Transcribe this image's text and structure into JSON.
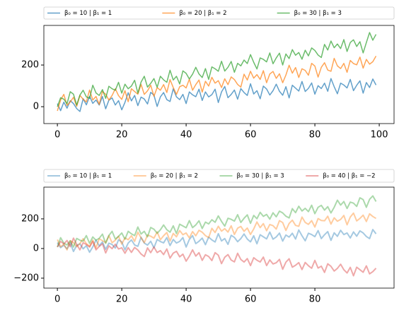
{
  "chart_data": [
    {
      "type": "line",
      "alpha": 0.7,
      "line_width": 1.5,
      "x": [
        0,
        1,
        2,
        3,
        4,
        5,
        6,
        7,
        8,
        9,
        10,
        11,
        12,
        13,
        14,
        15,
        16,
        17,
        18,
        19,
        20,
        21,
        22,
        23,
        24,
        25,
        26,
        27,
        28,
        29,
        30,
        31,
        32,
        33,
        34,
        35,
        36,
        37,
        38,
        39,
        40,
        41,
        42,
        43,
        44,
        45,
        46,
        47,
        48,
        49,
        50,
        51,
        52,
        53,
        54,
        55,
        56,
        57,
        58,
        59,
        60,
        61,
        62,
        63,
        64,
        65,
        66,
        67,
        68,
        69,
        70,
        71,
        72,
        73,
        74,
        75,
        76,
        77,
        78,
        79,
        80,
        81,
        82,
        83,
        84,
        85,
        86,
        87,
        88,
        89,
        90,
        91,
        92,
        93,
        94,
        95,
        96,
        97,
        98,
        99
      ],
      "xlim": [
        -4.2,
        104.6
      ],
      "xticks": [
        0,
        20,
        40,
        60,
        80,
        100
      ],
      "ylim": [
        -81,
        390
      ],
      "yticks": [
        0,
        200
      ],
      "series": [
        {
          "name": "β₀ = 10 | β₁ = 1",
          "color": "#1f77b4",
          "values": [
            15,
            -19,
            22,
            -7,
            29,
            15,
            -9,
            -23,
            38,
            9,
            50,
            16,
            32,
            8,
            49,
            -10,
            31,
            42,
            8,
            29,
            -15,
            21,
            67,
            28,
            54,
            5,
            46,
            37,
            13,
            69,
            55,
            1,
            47,
            68,
            34,
            25,
            86,
            47,
            34,
            59,
            15,
            71,
            57,
            48,
            84,
            30,
            71,
            47,
            58,
            84,
            20,
            71,
            97,
            43,
            59,
            80,
            36,
            87,
            68,
            54,
            110,
            61,
            77,
            38,
            99,
            85,
            56,
            77,
            108,
            74,
            55,
            96,
            42,
            103,
            89,
            75,
            121,
            73,
            88,
            114,
            60,
            101,
            87,
            113,
            74,
            135,
            96,
            62,
            113,
            104,
            90,
            131,
            77,
            103,
            124,
            65,
            116,
            92,
            133,
            104
          ]
        },
        {
          "name": "β₀ = 20 | β₁ = 2",
          "color": "#ff7f0e",
          "values": [
            -20,
            32,
            59,
            6,
            23,
            45,
            2,
            54,
            36,
            23,
            80,
            32,
            49,
            11,
            73,
            60,
            32,
            54,
            86,
            53,
            35,
            77,
            24,
            86,
            73,
            60,
            107,
            59,
            76,
            103,
            50,
            92,
            79,
            106,
            68,
            130,
            92,
            59,
            96,
            103,
            90,
            132,
            79,
            106,
            128,
            70,
            122,
            99,
            141,
            113,
            125,
            92,
            134,
            106,
            143,
            130,
            107,
            94,
            156,
            128,
            170,
            137,
            154,
            131,
            173,
            115,
            157,
            169,
            136,
            158,
            115,
            152,
            199,
            161,
            188,
            140,
            182,
            174,
            151,
            208,
            195,
            142,
            189,
            211,
            176,
            170,
            232,
            196,
            183,
            208,
            165,
            222,
            207,
            201,
            238,
            185,
            227,
            204,
            216,
            243
          ]
        },
        {
          "name": "β₀ = 30 | β₁ = 3",
          "color": "#2ca02c",
          "values": [
            0,
            43,
            36,
            14,
            72,
            60,
            8,
            56,
            79,
            47,
            40,
            103,
            66,
            54,
            82,
            40,
            98,
            86,
            79,
            117,
            65,
            108,
            86,
            99,
            127,
            65,
            118,
            146,
            94,
            112,
            135,
            93,
            146,
            129,
            117,
            175,
            128,
            146,
            109,
            172,
            160,
            133,
            156,
            189,
            157,
            140,
            183,
            131,
            191,
            182,
            170,
            218,
            171,
            189,
            217,
            165,
            208,
            196,
            224,
            207,
            250,
            213,
            181,
            234,
            227,
            215,
            258,
            206,
            234,
            257,
            200,
            253,
            231,
            274,
            247,
            260,
            228,
            271,
            244,
            282,
            270,
            248,
            236,
            299,
            272,
            315,
            283,
            301,
            279,
            322,
            265,
            308,
            321,
            289,
            312,
            258,
            308,
            356,
            319,
            347
          ]
        }
      ]
    },
    {
      "type": "line",
      "alpha": 0.4,
      "line_width": 2,
      "x": [
        0,
        1,
        2,
        3,
        4,
        5,
        6,
        7,
        8,
        9,
        10,
        11,
        12,
        13,
        14,
        15,
        16,
        17,
        18,
        19,
        20,
        21,
        22,
        23,
        24,
        25,
        26,
        27,
        28,
        29,
        30,
        31,
        32,
        33,
        34,
        35,
        36,
        37,
        38,
        39,
        40,
        41,
        42,
        43,
        44,
        45,
        46,
        47,
        48,
        49,
        50,
        51,
        52,
        53,
        54,
        55,
        56,
        57,
        58,
        59,
        60,
        61,
        62,
        63,
        64,
        65,
        66,
        67,
        68,
        69,
        70,
        71,
        72,
        73,
        74,
        75,
        76,
        77,
        78,
        79,
        80,
        81,
        82,
        83,
        84,
        85,
        86,
        87,
        88,
        89,
        90,
        91,
        92,
        93,
        94,
        95,
        96,
        97,
        98,
        99
      ],
      "xlim": [
        -4.2,
        104.6
      ],
      "xticks": [
        0,
        20,
        40,
        60,
        80
      ],
      "ylim": [
        -267,
        414
      ],
      "yticks": [
        {
          "value": -200,
          "label": "−200"
        },
        0,
        200
      ],
      "series": [
        {
          "name": "β₀ = 10 | β₁ = 1",
          "color": "#1f77b4",
          "values": [
            40,
            6,
            22,
            -2,
            39,
            -20,
            21,
            32,
            -2,
            19,
            -25,
            11,
            57,
            18,
            44,
            -5,
            36,
            27,
            3,
            59,
            45,
            -9,
            37,
            58,
            24,
            15,
            76,
            37,
            23,
            49,
            5,
            61,
            47,
            38,
            74,
            20,
            61,
            37,
            48,
            74,
            10,
            61,
            87,
            33,
            49,
            70,
            26,
            77,
            58,
            44,
            100,
            51,
            67,
            28,
            89,
            75,
            46,
            67,
            98,
            64,
            45,
            86,
            32,
            93,
            79,
            65,
            111,
            63,
            78,
            104,
            50,
            91,
            77,
            103,
            64,
            125,
            86,
            52,
            103,
            94,
            80,
            121,
            67,
            93,
            114,
            55,
            106,
            82,
            123,
            94,
            105,
            71,
            112,
            83,
            119,
            105,
            81,
            67,
            128,
            99
          ]
        },
        {
          "name": "β₀ = 20 | β₁ = 2",
          "color": "#ff7f0e",
          "values": [
            60,
            12,
            29,
            -9,
            53,
            40,
            12,
            34,
            66,
            33,
            15,
            57,
            4,
            66,
            53,
            40,
            87,
            39,
            56,
            83,
            30,
            72,
            59,
            86,
            48,
            110,
            72,
            39,
            91,
            83,
            70,
            112,
            59,
            86,
            108,
            50,
            102,
            79,
            121,
            93,
            105,
            72,
            114,
            86,
            123,
            110,
            87,
            74,
            136,
            108,
            150,
            117,
            134,
            111,
            153,
            95,
            137,
            149,
            116,
            138,
            95,
            132,
            179,
            141,
            168,
            120,
            162,
            154,
            131,
            188,
            175,
            122,
            169,
            191,
            156,
            150,
            212,
            176,
            163,
            188,
            145,
            202,
            189,
            187,
            218,
            165,
            207,
            184,
            196,
            223,
            160,
            212,
            239,
            186,
            203,
            225,
            182,
            234,
            216,
            203
          ]
        },
        {
          "name": "β₀ = 30 | β₁ = 3",
          "color": "#2ca02c",
          "values": [
            10,
            73,
            36,
            24,
            52,
            10,
            68,
            56,
            49,
            87,
            35,
            78,
            56,
            69,
            97,
            35,
            88,
            116,
            64,
            82,
            105,
            63,
            116,
            99,
            87,
            145,
            98,
            116,
            79,
            142,
            130,
            103,
            126,
            159,
            127,
            110,
            153,
            101,
            164,
            152,
            140,
            188,
            141,
            159,
            187,
            135,
            178,
            166,
            194,
            177,
            220,
            183,
            151,
            204,
            197,
            185,
            228,
            176,
            204,
            227,
            170,
            223,
            201,
            244,
            217,
            230,
            198,
            241,
            214,
            252,
            240,
            218,
            206,
            269,
            242,
            285,
            253,
            271,
            249,
            292,
            235,
            278,
            291,
            259,
            282,
            240,
            278,
            326,
            293,
            317,
            270,
            313,
            306,
            284,
            342,
            330,
            278,
            332,
            355,
            317
          ]
        },
        {
          "name": "β₀ = 40 | β₁ = −2",
          "color": "#d62728",
          "values": [
            10,
            48,
            31,
            54,
            12,
            70,
            28,
            -9,
            39,
            27,
            10,
            48,
            -9,
            14,
            32,
            -30,
            18,
            -1,
            29,
            -3,
            5,
            -32,
            6,
            -26,
            7,
            -10,
            -37,
            -54,
            4,
            -28,
            10,
            -27,
            -14,
            -41,
            -3,
            -65,
            -31,
            -19,
            -56,
            -38,
            -85,
            -52,
            -9,
            -51,
            -28,
            -80,
            -42,
            -54,
            -81,
            -28,
            -45,
            -102,
            -59,
            -41,
            -78,
            -90,
            -32,
            -74,
            -91,
            -68,
            -115,
            -62,
            -79,
            -91,
            -58,
            -115,
            -77,
            -104,
            -96,
            -73,
            -140,
            -92,
            -69,
            -126,
            -113,
            -95,
            -142,
            -94,
            -116,
            -133,
            -80,
            -132,
            -119,
            -161,
            -103,
            -120,
            -152,
            -134,
            -106,
            -143,
            -165,
            -127,
            -184,
            -126,
            -143,
            -160,
            -117,
            -171,
            -156,
            -133
          ]
        }
      ]
    }
  ]
}
